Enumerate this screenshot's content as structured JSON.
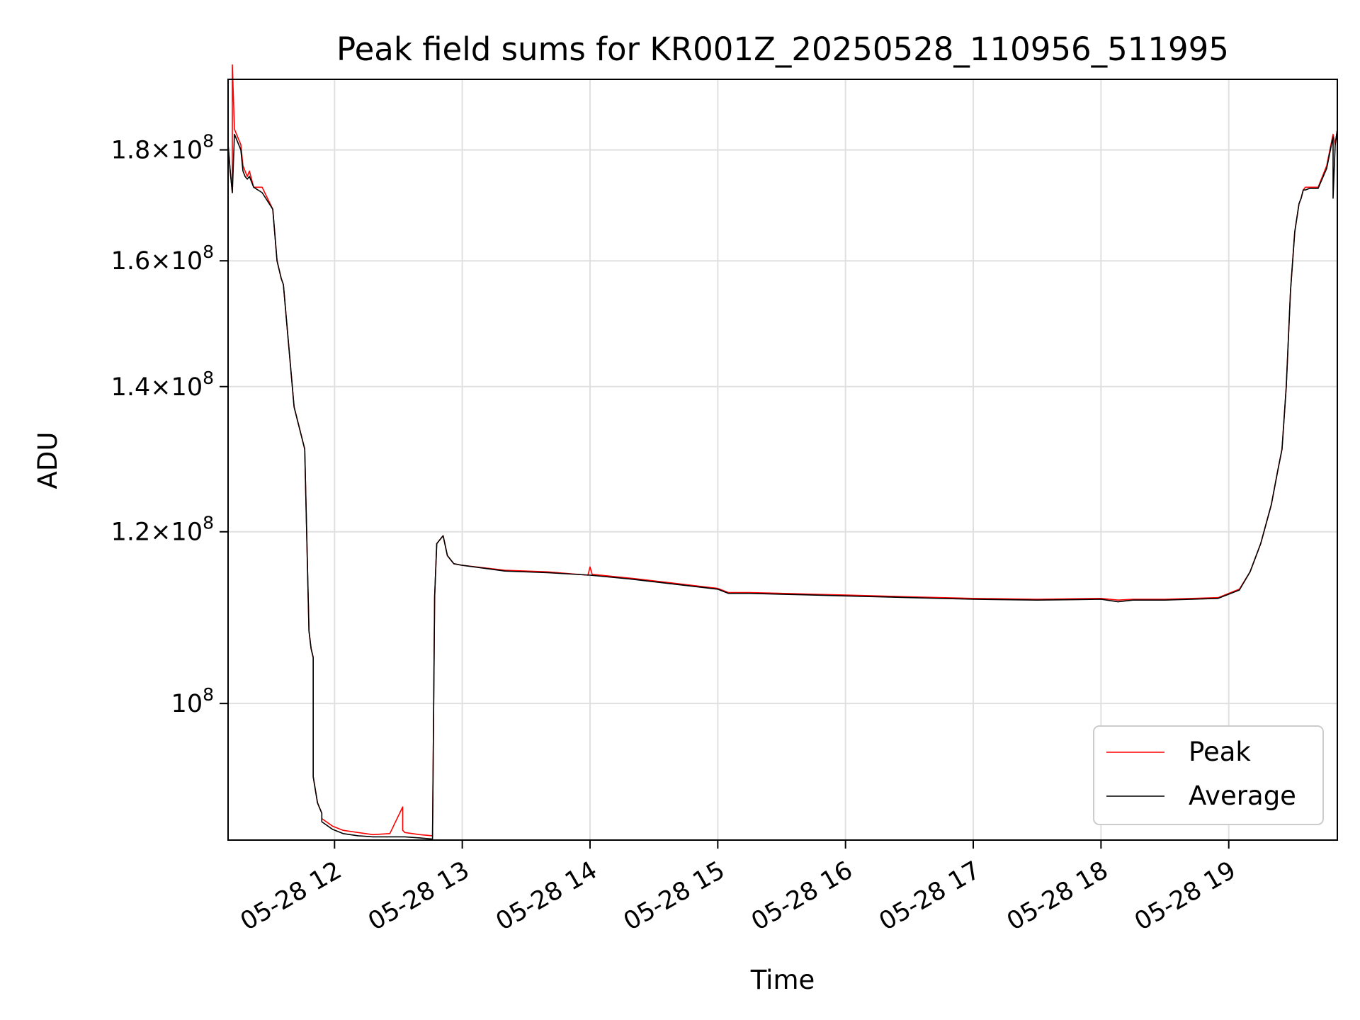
{
  "chart_data": {
    "type": "line",
    "title": "Peak field sums for KR001Z_20250528_110956_511995",
    "xlabel": "Time",
    "ylabel": "ADU",
    "x_scale": "time",
    "y_scale": "log",
    "xlim": [
      "2025-05-28 11:10",
      "2025-05-28 19:51"
    ],
    "ylim": [
      86500000,
      194000000
    ],
    "grid": true,
    "x_ticks": [
      {
        "value": "2025-05-28 12:00",
        "label": "05-28 12"
      },
      {
        "value": "2025-05-28 13:00",
        "label": "05-28 13"
      },
      {
        "value": "2025-05-28 14:00",
        "label": "05-28 14"
      },
      {
        "value": "2025-05-28 15:00",
        "label": "05-28 15"
      },
      {
        "value": "2025-05-28 16:00",
        "label": "05-28 16"
      },
      {
        "value": "2025-05-28 17:00",
        "label": "05-28 17"
      },
      {
        "value": "2025-05-28 18:00",
        "label": "05-28 18"
      },
      {
        "value": "2025-05-28 19:00",
        "label": "05-28 19"
      }
    ],
    "y_ticks": [
      {
        "value": 100000000,
        "mantissa": "",
        "base": "10",
        "exp": "8"
      },
      {
        "value": 120000000,
        "mantissa": "1.2",
        "base": "10",
        "exp": "8"
      },
      {
        "value": 140000000,
        "mantissa": "1.4",
        "base": "10",
        "exp": "8"
      },
      {
        "value": 160000000,
        "mantissa": "1.6",
        "base": "10",
        "exp": "8"
      },
      {
        "value": 180000000,
        "mantissa": "1.8",
        "base": "10",
        "exp": "8"
      }
    ],
    "legend": {
      "placement": "lower-right",
      "entries": [
        {
          "label": "Peak",
          "color": "#ff0000"
        },
        {
          "label": "Average",
          "color": "#000000"
        }
      ]
    },
    "series": [
      {
        "name": "Peak",
        "color": "#ff0000",
        "x": [
          "2025-05-28 11:10",
          "2025-05-28 11:11",
          "2025-05-28 11:12",
          "2025-05-28 11:12",
          "2025-05-28 11:13",
          "2025-05-28 11:16",
          "2025-05-28 11:17",
          "2025-05-28 11:18",
          "2025-05-28 11:19",
          "2025-05-28 11:20",
          "2025-05-28 11:22",
          "2025-05-28 11:26",
          "2025-05-28 11:31",
          "2025-05-28 11:33",
          "2025-05-28 11:35",
          "2025-05-28 11:36",
          "2025-05-28 11:38",
          "2025-05-28 11:41",
          "2025-05-28 11:46",
          "2025-05-28 11:48",
          "2025-05-28 11:49",
          "2025-05-28 11:50",
          "2025-05-28 11:50",
          "2025-05-28 11:52",
          "2025-05-28 11:54",
          "2025-05-28 11:54",
          "2025-05-28 11:59",
          "2025-05-28 12:04",
          "2025-05-28 12:11",
          "2025-05-28 12:18",
          "2025-05-28 12:26",
          "2025-05-28 12:32",
          "2025-05-28 12:32",
          "2025-05-28 12:33",
          "2025-05-28 12:40",
          "2025-05-28 12:46",
          "2025-05-28 12:47",
          "2025-05-28 12:48",
          "2025-05-28 12:51",
          "2025-05-28 12:53",
          "2025-05-28 12:56",
          "2025-05-28 13:00",
          "2025-05-28 13:20",
          "2025-05-28 13:40",
          "2025-05-28 13:59",
          "2025-05-28 14:00",
          "2025-05-28 14:01",
          "2025-05-28 14:20",
          "2025-05-28 14:40",
          "2025-05-28 15:00",
          "2025-05-28 15:05",
          "2025-05-28 15:15",
          "2025-05-28 15:30",
          "2025-05-28 16:00",
          "2025-05-28 16:30",
          "2025-05-28 17:00",
          "2025-05-28 17:30",
          "2025-05-28 18:00",
          "2025-05-28 18:08",
          "2025-05-28 18:15",
          "2025-05-28 18:30",
          "2025-05-28 18:55",
          "2025-05-28 19:05",
          "2025-05-28 19:10",
          "2025-05-28 19:15",
          "2025-05-28 19:20",
          "2025-05-28 19:23",
          "2025-05-28 19:25",
          "2025-05-28 19:27",
          "2025-05-28 19:29",
          "2025-05-28 19:31",
          "2025-05-28 19:33",
          "2025-05-28 19:34",
          "2025-05-28 19:35",
          "2025-05-28 19:36",
          "2025-05-28 19:38",
          "2025-05-28 19:42",
          "2025-05-28 19:46",
          "2025-05-28 19:48",
          "2025-05-28 19:49",
          "2025-05-28 19:50",
          "2025-05-28 19:51"
        ],
        "values": [
          181000000,
          176000000,
          172000000,
          197000000,
          184000000,
          181000000,
          177000000,
          176000000,
          175000000,
          176000000,
          173000000,
          173000000,
          169000000,
          160000000,
          157000000,
          156000000,
          148000000,
          137000000,
          131000000,
          108000000,
          106000000,
          105000000,
          92500000,
          90000000,
          89000000,
          88500000,
          87800000,
          87400000,
          87200000,
          87000000,
          87100000,
          89600000,
          87400000,
          87200000,
          87000000,
          86900000,
          112000000,
          118500000,
          119500000,
          117000000,
          116000000,
          115800000,
          115200000,
          115000000,
          114600000,
          115600000,
          114700000,
          114200000,
          113600000,
          113000000,
          112500000,
          112500000,
          112400000,
          112200000,
          112000000,
          111800000,
          111700000,
          111800000,
          111600000,
          111700000,
          111700000,
          111900000,
          112900000,
          115000000,
          118500000,
          123500000,
          128000000,
          131000000,
          140000000,
          155000000,
          165000000,
          170000000,
          171000000,
          172500000,
          173000000,
          173000000,
          173000000,
          177000000,
          181000000,
          183000000,
          181000000,
          184000000
        ]
      },
      {
        "name": "Average",
        "color": "#000000",
        "x": [
          "2025-05-28 11:10",
          "2025-05-28 11:11",
          "2025-05-28 11:12",
          "2025-05-28 11:13",
          "2025-05-28 11:16",
          "2025-05-28 11:17",
          "2025-05-28 11:18",
          "2025-05-28 11:19",
          "2025-05-28 11:20",
          "2025-05-28 11:22",
          "2025-05-28 11:26",
          "2025-05-28 11:31",
          "2025-05-28 11:33",
          "2025-05-28 11:35",
          "2025-05-28 11:36",
          "2025-05-28 11:38",
          "2025-05-28 11:41",
          "2025-05-28 11:46",
          "2025-05-28 11:48",
          "2025-05-28 11:49",
          "2025-05-28 11:50",
          "2025-05-28 11:50",
          "2025-05-28 11:52",
          "2025-05-28 11:54",
          "2025-05-28 11:54",
          "2025-05-28 11:59",
          "2025-05-28 12:04",
          "2025-05-28 12:11",
          "2025-05-28 12:18",
          "2025-05-28 12:26",
          "2025-05-28 12:33",
          "2025-05-28 12:40",
          "2025-05-28 12:46",
          "2025-05-28 12:47",
          "2025-05-28 12:48",
          "2025-05-28 12:51",
          "2025-05-28 12:53",
          "2025-05-28 12:56",
          "2025-05-28 13:00",
          "2025-05-28 13:20",
          "2025-05-28 13:40",
          "2025-05-28 14:00",
          "2025-05-28 14:20",
          "2025-05-28 14:40",
          "2025-05-28 15:00",
          "2025-05-28 15:05",
          "2025-05-28 15:15",
          "2025-05-28 15:30",
          "2025-05-28 16:00",
          "2025-05-28 16:30",
          "2025-05-28 17:00",
          "2025-05-28 17:30",
          "2025-05-28 18:00",
          "2025-05-28 18:08",
          "2025-05-28 18:15",
          "2025-05-28 18:30",
          "2025-05-28 18:55",
          "2025-05-28 19:05",
          "2025-05-28 19:10",
          "2025-05-28 19:15",
          "2025-05-28 19:20",
          "2025-05-28 19:23",
          "2025-05-28 19:25",
          "2025-05-28 19:27",
          "2025-05-28 19:29",
          "2025-05-28 19:31",
          "2025-05-28 19:33",
          "2025-05-28 19:34",
          "2025-05-28 19:35",
          "2025-05-28 19:36",
          "2025-05-28 19:38",
          "2025-05-28 19:42",
          "2025-05-28 19:46",
          "2025-05-28 19:48",
          "2025-05-28 19:49",
          "2025-05-28 19:49",
          "2025-05-28 19:50",
          "2025-05-28 19:51"
        ],
        "values": [
          181000000,
          176000000,
          172000000,
          183000000,
          180000000,
          176000000,
          175000000,
          174500000,
          175000000,
          173000000,
          172000000,
          169000000,
          160000000,
          157000000,
          156000000,
          148000000,
          137000000,
          131000000,
          108000000,
          106000000,
          105000000,
          92500000,
          90000000,
          89000000,
          88200000,
          87500000,
          87100000,
          86900000,
          86800000,
          86800000,
          86800000,
          86700000,
          86600000,
          112000000,
          118500000,
          119500000,
          117000000,
          116000000,
          115800000,
          115100000,
          114900000,
          114600000,
          114100000,
          113500000,
          112900000,
          112400000,
          112400000,
          112300000,
          112100000,
          111900000,
          111700000,
          111600000,
          111700000,
          111400000,
          111600000,
          111600000,
          111800000,
          112800000,
          115000000,
          118500000,
          123500000,
          128000000,
          131000000,
          140000000,
          155000000,
          165000000,
          170000000,
          171000000,
          172500000,
          172500000,
          172800000,
          172800000,
          176500000,
          180500000,
          182500000,
          171000000,
          181000000,
          184000000
        ]
      }
    ]
  }
}
